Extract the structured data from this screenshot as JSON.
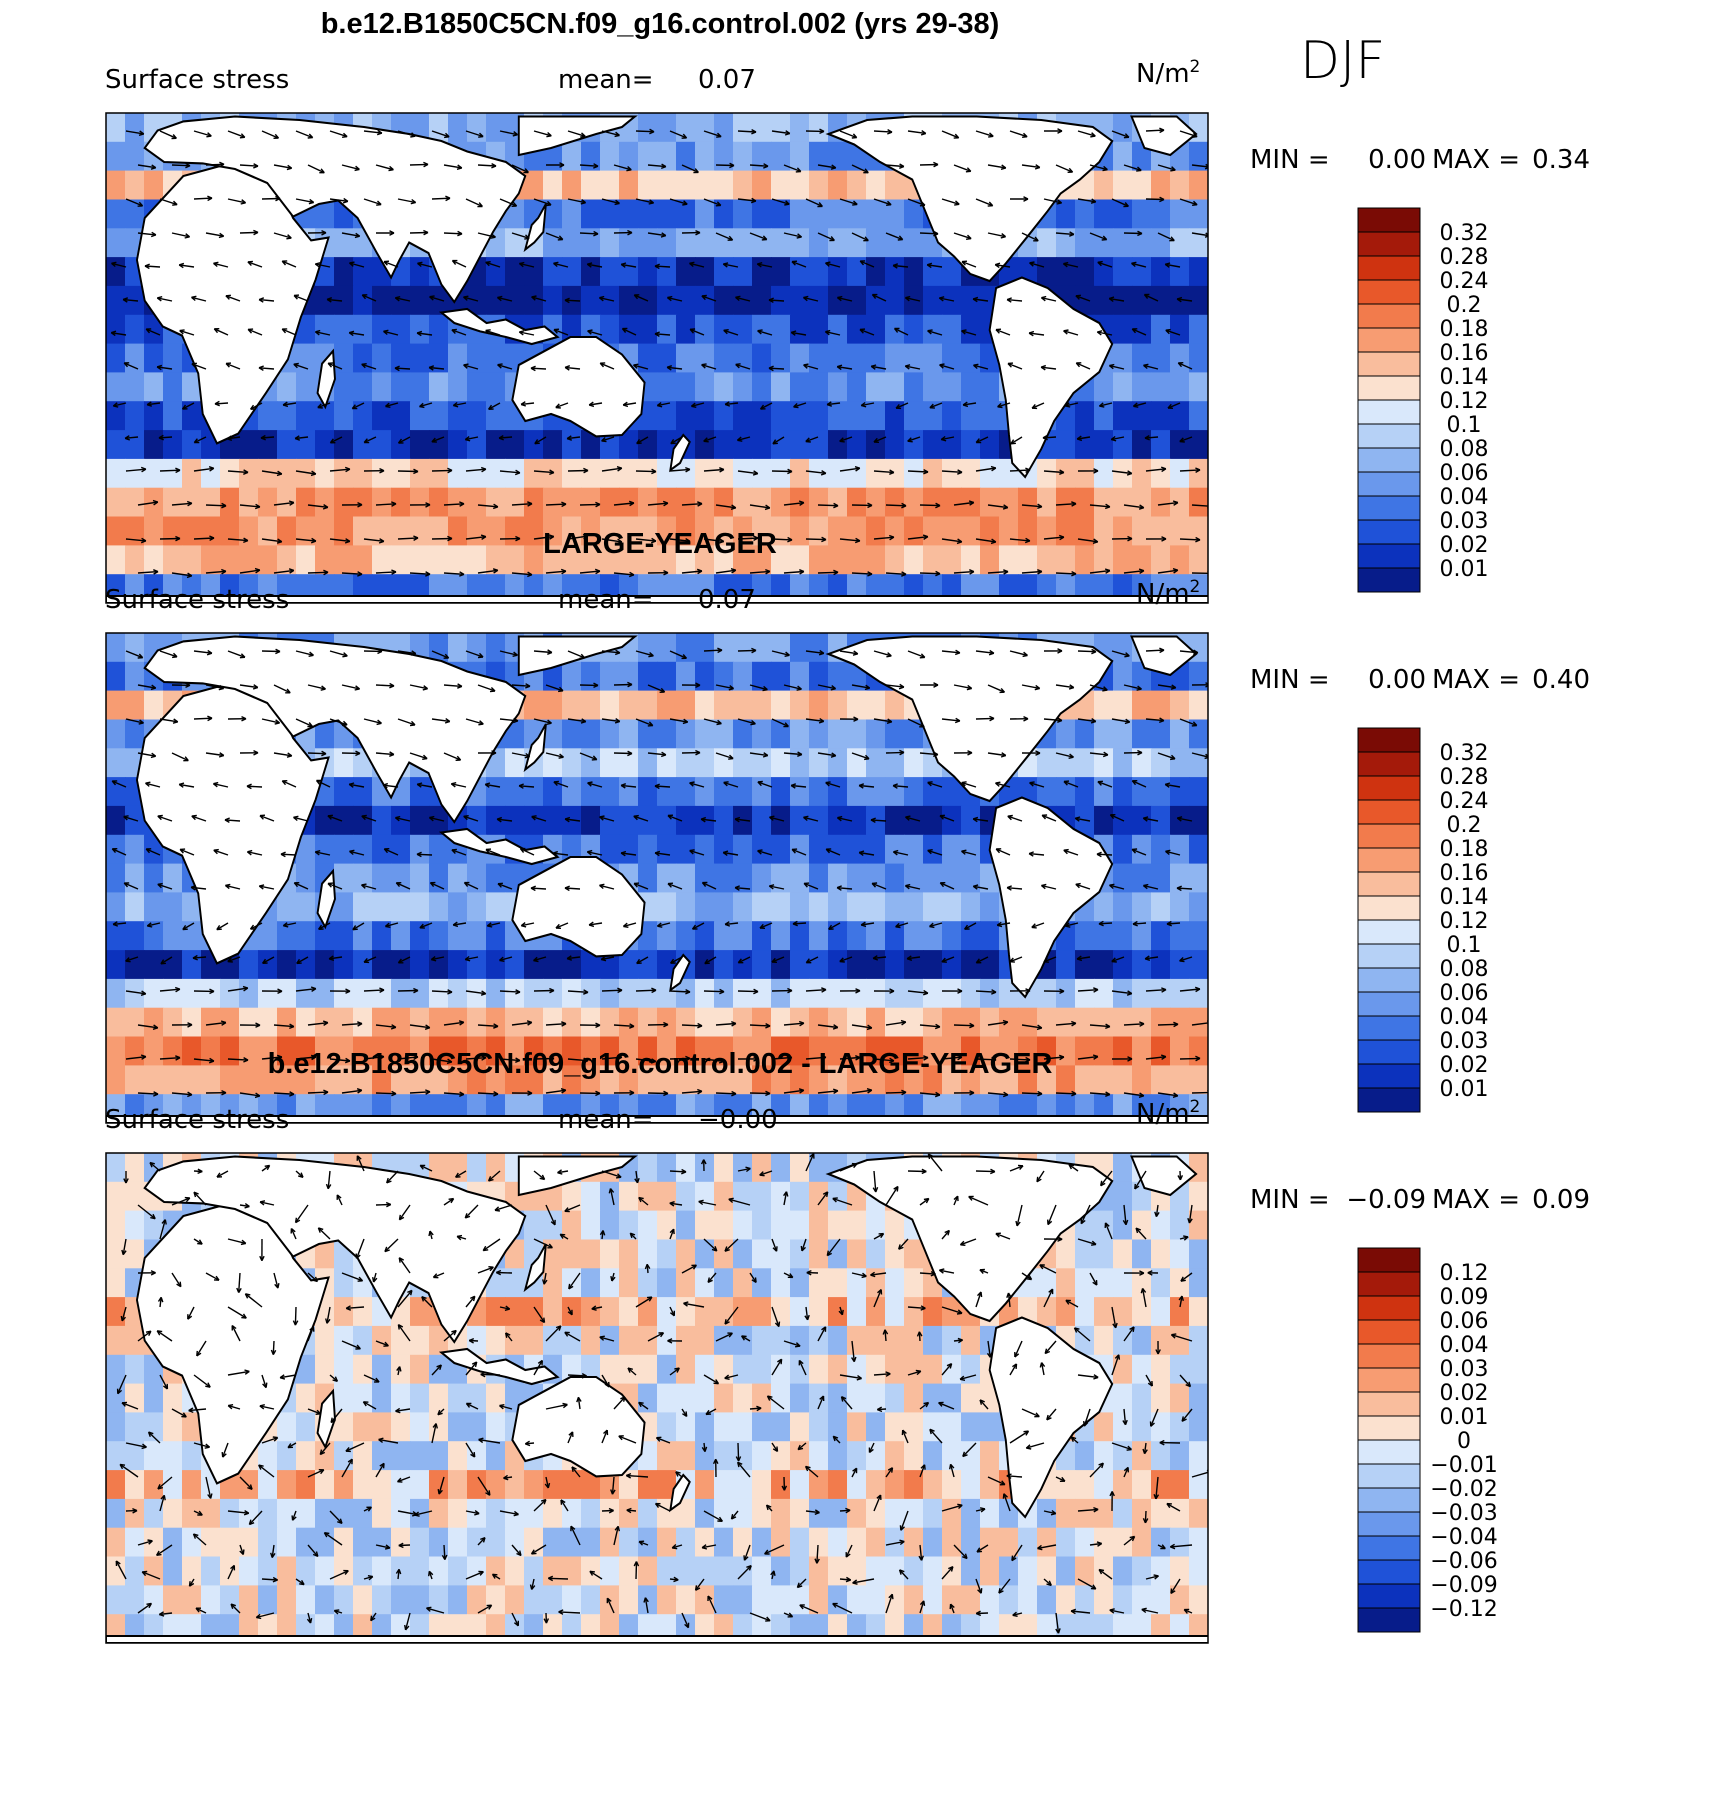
{
  "season": "DJF",
  "colors": {
    "land": "#ffffff",
    "coast": "#000000",
    "arrow": "#000000",
    "frame": "#000000"
  },
  "panels": [
    {
      "title": "b.e12.B1850C5CN.f09_g16.control.002 (yrs 29-38)",
      "left_label": "Surface stress",
      "mean_label": "mean=",
      "mean_value": "0.07",
      "units": "N/m",
      "units_sup": "2",
      "min_label": "MIN =",
      "min_value": "0.00",
      "max_label": "MAX =",
      "max_value": "0.34",
      "colorbar": {
        "labels": [
          "0.32",
          "0.28",
          "0.24",
          "0.2",
          "0.18",
          "0.16",
          "0.14",
          "0.12",
          "0.1",
          "0.08",
          "0.06",
          "0.04",
          "0.03",
          "0.02",
          "0.01"
        ],
        "colors": [
          "#7a0b05",
          "#a41a0a",
          "#cf3310",
          "#e8582a",
          "#f27b4c",
          "#f79c72",
          "#f9bd9d",
          "#fbe1cf",
          "#d9e8fb",
          "#b6d1f6",
          "#8fb5f1",
          "#6a98ec",
          "#3f75e4",
          "#1f52d8",
          "#0c32bd",
          "#071c8a"
        ]
      }
    },
    {
      "title": "LARGE-YEAGER",
      "left_label": "Surface stress",
      "mean_label": "mean=",
      "mean_value": "0.07",
      "units": "N/m",
      "units_sup": "2",
      "min_label": "MIN =",
      "min_value": "0.00",
      "max_label": "MAX =",
      "max_value": "0.40",
      "colorbar": {
        "labels": [
          "0.32",
          "0.28",
          "0.24",
          "0.2",
          "0.18",
          "0.16",
          "0.14",
          "0.12",
          "0.1",
          "0.08",
          "0.06",
          "0.04",
          "0.03",
          "0.02",
          "0.01"
        ],
        "colors": [
          "#7a0b05",
          "#a41a0a",
          "#cf3310",
          "#e8582a",
          "#f27b4c",
          "#f79c72",
          "#f9bd9d",
          "#fbe1cf",
          "#d9e8fb",
          "#b6d1f6",
          "#8fb5f1",
          "#6a98ec",
          "#3f75e4",
          "#1f52d8",
          "#0c32bd",
          "#071c8a"
        ]
      }
    },
    {
      "title": "b.e12.B1850C5CN.f09_g16.control.002 - LARGE-YEAGER",
      "left_label": "Surface stress",
      "mean_label": "mean=",
      "mean_value": "−0.00",
      "units": "N/m",
      "units_sup": "2",
      "min_label": "MIN =",
      "min_value": "−0.09",
      "max_label": "MAX =",
      "max_value": "0.09",
      "colorbar": {
        "labels": [
          "0.12",
          "0.09",
          "0.06",
          "0.04",
          "0.03",
          "0.02",
          "0.01",
          "0",
          "−0.01",
          "−0.02",
          "−0.03",
          "−0.04",
          "−0.06",
          "−0.09",
          "−0.12"
        ],
        "colors": [
          "#7a0b05",
          "#a41a0a",
          "#cf3310",
          "#e8582a",
          "#f27b4c",
          "#f79c72",
          "#f9bd9d",
          "#fbe1cf",
          "#d9e8fb",
          "#b6d1f6",
          "#8fb5f1",
          "#6a98ec",
          "#3f75e4",
          "#1f52d8",
          "#0c32bd",
          "#071c8a"
        ]
      }
    }
  ]
}
